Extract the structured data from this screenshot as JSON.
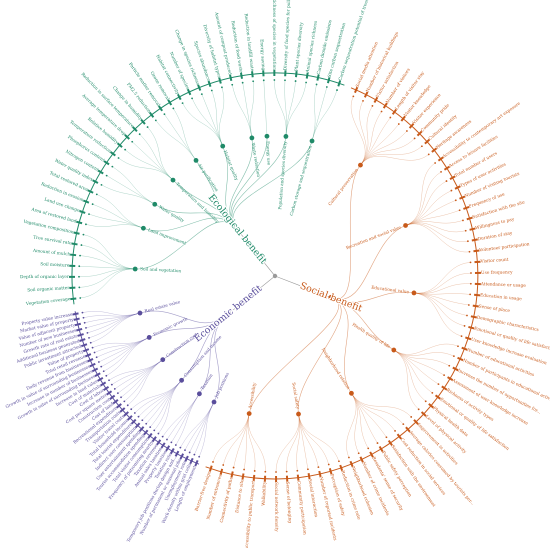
{
  "colors": {
    "ecological": "#1f8a68",
    "social": "#c85a1a",
    "economic": "#5a4e9c",
    "center": "#9a9a9a"
  },
  "categories": [
    {
      "key": "ecological",
      "label": "Ecological benefit",
      "groups": [
        {
          "label": "Soil and vegetation",
          "leaves": [
            "Vegetation coverage",
            "Soil organic matter",
            "Depth of organic layer",
            "Soil moisture",
            "Amount of mulch",
            "Tree survival rate",
            "Vegetation composition"
          ]
        },
        {
          "label": "Land improvement",
          "leaves": [
            "Area of restored land",
            "Land use change",
            "Reduction in erosion",
            "Total restored area"
          ]
        },
        {
          "label": "Water quality",
          "leaves": [
            "Water quality index",
            "Nitrogen content",
            "Phosphorus content"
          ]
        },
        {
          "label": "Temperature and humidity",
          "leaves": [
            "Temperature reduction",
            "Relative humidity",
            "Average temperature drop",
            "Reduction in surface temperature",
            "Change in humidity"
          ]
        },
        {
          "label": "Air purification",
          "leaves": [
            "PM2.5 reduction",
            "Particle matter removal",
            "Ozone removal"
          ]
        },
        {
          "label": "Habitat quality",
          "leaves": [
            "Habitat connectivity",
            "Number of species",
            "Change in species richness",
            "Species abundance",
            "Diversity of habitat types"
          ]
        },
        {
          "label": "Waste reduction",
          "leaves": [
            "Amount of compost produced",
            "Reduction of food waste",
            "Reduction in landfill waste"
          ]
        },
        {
          "label": "Energy use",
          "leaves": [
            "Energy saving"
          ]
        },
        {
          "label": "Population and species diversity",
          "leaves": [
            "Richness of species in vegetation",
            "Diversity of food species for pollinators",
            "Plant species diversity",
            "Animal species richness"
          ]
        },
        {
          "label": "Carbon storage and sequestration",
          "leaves": [
            "Carbon dioxide emissions",
            "Site carbon sequestration",
            "Carbon sequestration potential of trees"
          ]
        }
      ]
    },
    {
      "key": "economic",
      "label": "Economic benefit",
      "groups": [
        {
          "label": "Job positions",
          "leaves": [
            "Length of employment",
            "Work density within grid cells",
            "Unemployment rate",
            "Number of permanent or seasonal jobs",
            "Temporary job positions during design and..."
          ]
        },
        {
          "label": "Taxation",
          "leaves": [
            "Taxation rate",
            "Property taxation",
            "Annual sales taxation",
            "Taxation revenue"
          ]
        },
        {
          "label": "Consumption and income",
          "leaves": [
            "Frequency of patronizing nearby",
            "Total visitor consumption",
            "Tourist accommodation spending",
            "User entertainment spending",
            "Indirect user consumption",
            "Total tourist expenditure",
            "Total household income",
            "Visitor travel costs"
          ]
        },
        {
          "label": "Construction cost",
          "leaves": [
            "Transportation costs",
            "Recreational expenditure",
            "Cost of land",
            "Construction cost",
            "Cost per square meter",
            "Cost of labor",
            "Cost of materials"
          ]
        },
        {
          "label": "Economic growth",
          "leaves": [
            "Increase in land value",
            "Growth in sales of surrounding business",
            "Increase in number of businesses",
            "Growth in value of surrounding businesses",
            "Daily revenue from businesses",
            "Total retail revenue",
            "Value of property"
          ]
        },
        {
          "label": "Real estate value",
          "leaves": [
            "Public investment attracted",
            "Additional business generated",
            "Growth rate of real estate",
            "Number of new businesses",
            "Value of adjacent property",
            "Market value of property",
            "Property value increase"
          ]
        }
      ]
    },
    {
      "key": "social",
      "label": "Social benefit",
      "groups": [
        {
          "label": "Cultural preservation",
          "leaves": [
            "Social media attention",
            "Number of historical buildings",
            "Visitor satisfaction",
            "Number of visitors",
            "Length of visitor stay",
            "Visitor knowledge",
            "Visitor experience",
            "Community pride",
            "Cultural identity",
            "Heritage awareness"
          ]
        },
        {
          "label": "Recreation and social value",
          "leaves": [
            "Accessibility to contemporary art exposure",
            "Access to leisure facilities",
            "Total number of users",
            "Types of user activities",
            "Number of visiting tourists",
            "Frequency of use",
            "Satisfaction with the site",
            "Willingness to pay",
            "Duration of stay",
            "Volunteer participation"
          ]
        },
        {
          "label": "Educational value",
          "leaves": [
            "Visitor count",
            "Use frequency",
            "Attendance or usage",
            "Education in usage",
            "Sense of place",
            "Demographic characteristics",
            "Emotional or quality of life satisfaction",
            "User knowledge increase evaluation"
          ]
        },
        {
          "label": "Health quality of life",
          "leaves": [
            "Number of educational activities",
            "Number of participants in educational activities",
            "Increase the number of opportunities for...",
            "Assessment of user knowledge increase",
            "Richness of activity types",
            "Emotional or quality of life satisfaction",
            "Physical health data",
            "Level of physical activity"
          ]
        },
        {
          "label": "Neighborhood relation",
          "leaves": [
            "Improvement in activities",
            "Average calories consumed by tourists per...",
            "Cost reduction in social services",
            "Satisfaction with the environment",
            "Public safety perception",
            "Residents' sense of security",
            "Number of crime incidents",
            "Neighborhood cohesion"
          ]
        },
        {
          "label": "Social safety",
          "leaves": [
            "Reduction in crime rate",
            "Perception of safety",
            "Number of reported incidents",
            "Social interaction",
            "Community participation",
            "Sense of belonging",
            "Social network density"
          ]
        },
        {
          "label": "Accessibility",
          "leaves": [
            "Walkability",
            "Accessibility to public transport",
            "Distance to site",
            "Connectivity of paths",
            "Number of entrances",
            "Barrier-free design"
          ]
        }
      ]
    }
  ]
}
